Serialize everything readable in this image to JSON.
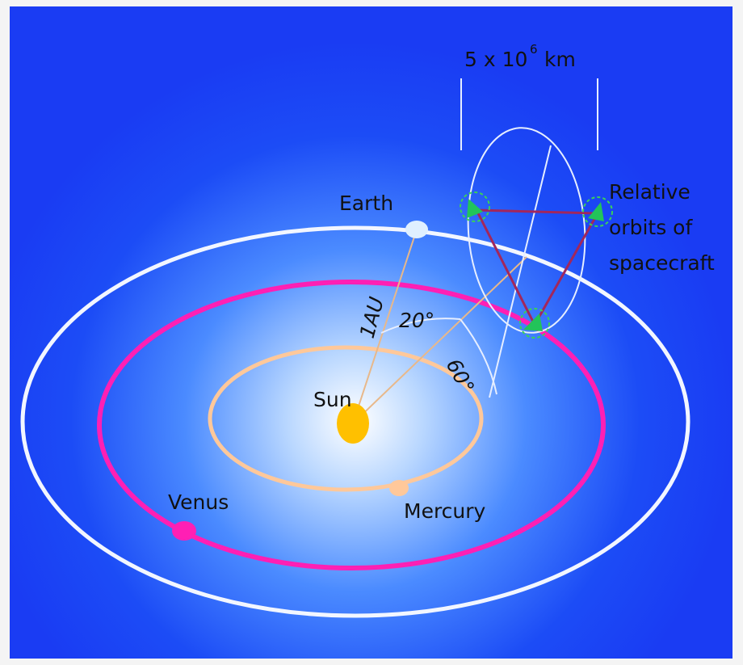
{
  "scale": {
    "base": "5 x 10",
    "exponent": "6",
    "unit": "km"
  },
  "bodies": {
    "earth": "Earth",
    "sun": "Sun",
    "venus": "Venus",
    "mercury": "Mercury"
  },
  "spacecraft_label": [
    "Relative",
    "orbits of",
    "spacecraft"
  ],
  "distance_label": "1AU",
  "angles": {
    "trail": "20°",
    "tilt": "60°"
  }
}
